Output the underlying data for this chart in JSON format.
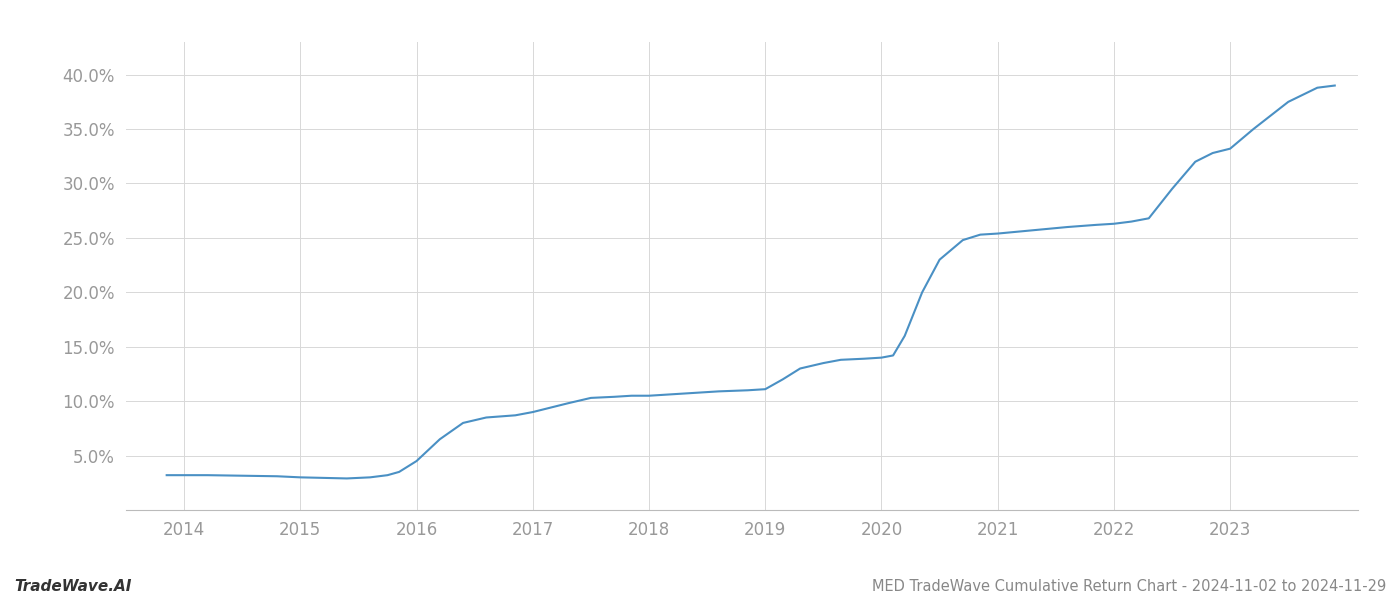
{
  "title": "MED TradeWave Cumulative Return Chart - 2024-11-02 to 2024-11-29",
  "watermark": "TradeWave.AI",
  "line_color": "#4a90c4",
  "line_width": 1.5,
  "background_color": "#ffffff",
  "grid_color": "#d8d8d8",
  "x_values": [
    2013.85,
    2014.0,
    2014.2,
    2014.5,
    2014.8,
    2015.0,
    2015.2,
    2015.4,
    2015.6,
    2015.75,
    2015.85,
    2016.0,
    2016.2,
    2016.4,
    2016.6,
    2016.85,
    2017.0,
    2017.3,
    2017.5,
    2017.7,
    2017.85,
    2018.0,
    2018.3,
    2018.6,
    2018.85,
    2019.0,
    2019.15,
    2019.3,
    2019.5,
    2019.65,
    2019.85,
    2020.0,
    2020.1,
    2020.2,
    2020.35,
    2020.5,
    2020.7,
    2020.85,
    2021.0,
    2021.2,
    2021.4,
    2021.6,
    2021.85,
    2022.0,
    2022.15,
    2022.3,
    2022.5,
    2022.7,
    2022.85,
    2023.0,
    2023.2,
    2023.5,
    2023.75,
    2023.9
  ],
  "y_values": [
    3.2,
    3.2,
    3.2,
    3.15,
    3.1,
    3.0,
    2.95,
    2.9,
    3.0,
    3.2,
    3.5,
    4.5,
    6.5,
    8.0,
    8.5,
    8.7,
    9.0,
    9.8,
    10.3,
    10.4,
    10.5,
    10.5,
    10.7,
    10.9,
    11.0,
    11.1,
    12.0,
    13.0,
    13.5,
    13.8,
    13.9,
    14.0,
    14.2,
    16.0,
    20.0,
    23.0,
    24.8,
    25.3,
    25.4,
    25.6,
    25.8,
    26.0,
    26.2,
    26.3,
    26.5,
    26.8,
    29.5,
    32.0,
    32.8,
    33.2,
    35.0,
    37.5,
    38.8,
    39.0
  ],
  "xlim": [
    2013.5,
    2024.1
  ],
  "ylim": [
    0,
    43
  ],
  "yticks": [
    5.0,
    10.0,
    15.0,
    20.0,
    25.0,
    30.0,
    35.0,
    40.0
  ],
  "xtick_labels": [
    "2014",
    "2015",
    "2016",
    "2017",
    "2018",
    "2019",
    "2020",
    "2021",
    "2022",
    "2023"
  ],
  "xtick_positions": [
    2014,
    2015,
    2016,
    2017,
    2018,
    2019,
    2020,
    2021,
    2022,
    2023
  ],
  "tick_label_color": "#999999",
  "tick_label_fontsize": 12,
  "title_fontsize": 10.5,
  "watermark_fontsize": 11
}
